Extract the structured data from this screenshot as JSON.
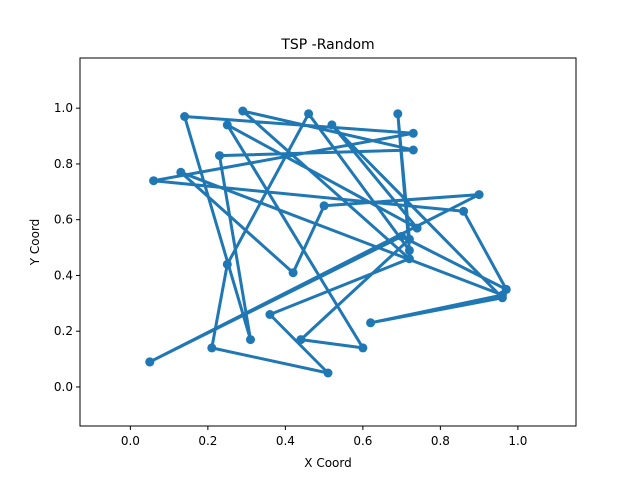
{
  "chart_data": {
    "type": "line",
    "title": "TSP -Random",
    "xlabel": "X Coord",
    "ylabel": "Y Coord",
    "xlim": [
      -0.13,
      1.15
    ],
    "ylim": [
      -0.14,
      1.18
    ],
    "xticks": [
      "0.0",
      "0.2",
      "0.4",
      "0.6",
      "0.8",
      "1.0"
    ],
    "yticks": [
      "0.0",
      "0.2",
      "0.4",
      "0.6",
      "0.8",
      "1.0"
    ],
    "grid": false,
    "color": "#1f77b4",
    "series": [
      {
        "x": [
          0.05,
          0.7,
          0.97,
          0.86,
          0.06,
          0.73,
          0.14,
          0.31,
          0.23,
          0.73,
          0.29,
          0.72,
          0.36,
          0.51,
          0.21,
          0.25,
          0.46,
          0.72,
          0.69,
          0.72,
          0.44,
          0.6,
          0.25,
          0.74,
          0.52,
          0.96,
          0.62,
          0.96,
          0.13,
          0.42,
          0.5,
          0.9,
          0.05
        ],
        "y": [
          0.09,
          0.54,
          0.35,
          0.63,
          0.74,
          0.91,
          0.97,
          0.17,
          0.83,
          0.85,
          0.99,
          0.46,
          0.26,
          0.05,
          0.14,
          0.44,
          0.98,
          0.49,
          0.98,
          0.53,
          0.17,
          0.14,
          0.94,
          0.57,
          0.94,
          0.32,
          0.23,
          0.33,
          0.77,
          0.41,
          0.65,
          0.69,
          0.09
        ]
      }
    ]
  }
}
